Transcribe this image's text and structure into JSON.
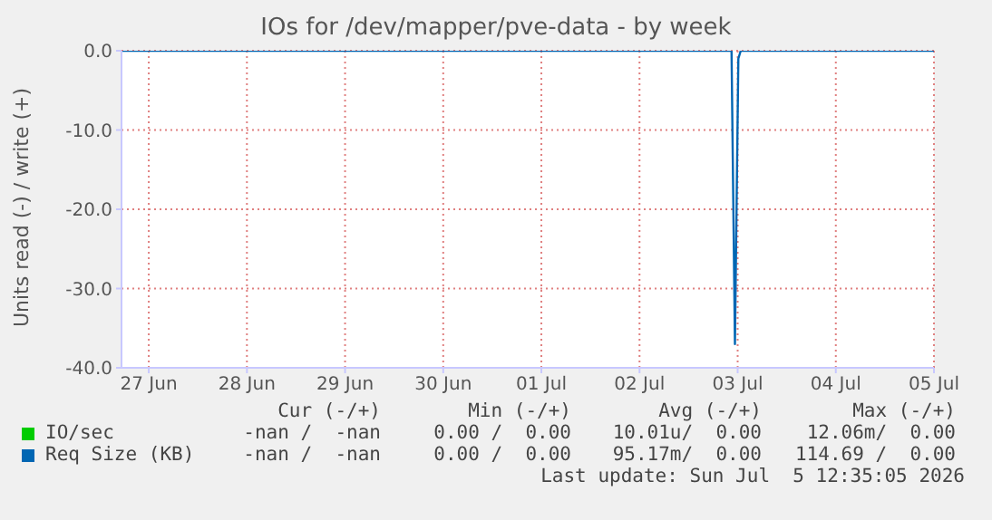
{
  "chart_data": {
    "type": "line",
    "title": "IOs for /dev/mapper/pve-data - by week",
    "ylabel": "Units read (-) / write (+)",
    "xlim": [
      "2026-06-26T17:20",
      "2026-07-05T00:00"
    ],
    "xticks": [
      {
        "value": "2026-06-27",
        "label": "27 Jun"
      },
      {
        "value": "2026-06-28",
        "label": "28 Jun"
      },
      {
        "value": "2026-06-29",
        "label": "29 Jun"
      },
      {
        "value": "2026-06-30",
        "label": "30 Jun"
      },
      {
        "value": "2026-07-01",
        "label": "01 Jul"
      },
      {
        "value": "2026-07-02",
        "label": "02 Jul"
      },
      {
        "value": "2026-07-03",
        "label": "03 Jul"
      },
      {
        "value": "2026-07-04",
        "label": "04 Jul"
      },
      {
        "value": "2026-07-05",
        "label": "05 Jul"
      }
    ],
    "ylim": [
      -40,
      0
    ],
    "yticks": [
      {
        "value": -40,
        "label": "-40.0"
      },
      {
        "value": -30,
        "label": "-30.0"
      },
      {
        "value": -20,
        "label": "-20.0"
      },
      {
        "value": -10,
        "label": "-10.0"
      },
      {
        "value": 0,
        "label": "0.0"
      }
    ],
    "grid": true,
    "legend": "bottom",
    "marker": "none",
    "line_style": "solid",
    "series": [
      {
        "name": "IO/sec",
        "color": "#00cc00"
      },
      {
        "name": "Req Size (KB)",
        "color": "#0066b3",
        "x": [
          "2026-06-26T17:20",
          "2026-07-02T22:30",
          "2026-07-02T23:20",
          "2026-07-03T00:10",
          "2026-07-03T00:45",
          "2026-07-05T00:00"
        ],
        "values": [
          0,
          0,
          -37,
          -1,
          0,
          0
        ]
      }
    ],
    "annotations": [
      "Cur (-/+)",
      "Min (-/+)",
      "Avg (-/+)",
      "Max (-/+)",
      "-nan /  -nan",
      "0.00 /  0.00",
      "10.01u/  0.00",
      "12.06m/  0.00",
      "-nan /  -nan",
      "0.00 /  0.00",
      "95.17m/  0.00",
      "114.69 /  0.00",
      "Last update: Sun Jul  5 12:35:05 2026"
    ]
  }
}
